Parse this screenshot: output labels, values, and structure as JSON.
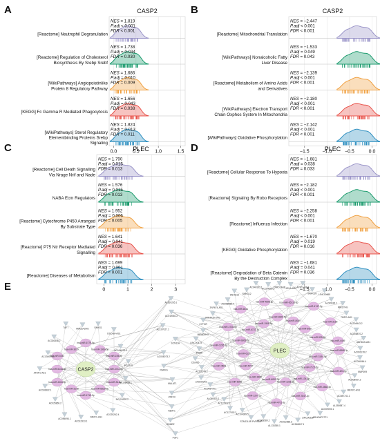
{
  "figure": {
    "labels": [
      "A",
      "B",
      "C",
      "D",
      "E"
    ]
  },
  "chart_data": [
    {
      "panel": "A",
      "type": "ridgeline",
      "title": "CASP2",
      "xticks": [
        "0.0",
        "0.5",
        "1.0",
        "1.5"
      ],
      "xlim": [
        -0.1,
        1.6
      ],
      "colors": [
        "#9a94c8",
        "#1a9a6c",
        "#f0a040",
        "#e8524a",
        "#2e8fc0"
      ],
      "rows": [
        {
          "label": [
            "[Reactome] Neutrophil Degranulation"
          ],
          "nes": "1.819",
          "padj": "< 0.001",
          "fdr": "< 0.001",
          "peak": 0.3
        },
        {
          "label": [
            "[Reactome] Regulation of Cholesterol",
            "Biosynthesis By Srebp Srebf"
          ],
          "nes": "1.738",
          "padj": "0.034",
          "fdr": "0.030",
          "peak": 0.3
        },
        {
          "label": [
            "[WikiPathways] Angiopoietinlike",
            "Protein 8 Regulatory Pathway"
          ],
          "nes": "1.686",
          "padj": "0.010",
          "fdr": "0.009",
          "peak": 0.3
        },
        {
          "label": [
            "[KEGG] Fc Gamma R Mediated Phagocytosis"
          ],
          "nes": "1.656",
          "padj": "0.043",
          "fdr": "0.038",
          "peak": 0.3
        },
        {
          "label": [
            "[WikiPathways] Sterol Regulatory",
            "Elementbinding Proteins Srebp",
            "Signaling"
          ],
          "nes": "1.824",
          "padj": "0.013",
          "fdr": "0.011",
          "peak": 0.3
        }
      ]
    },
    {
      "panel": "B",
      "type": "ridgeline",
      "title": "CASP2",
      "xticks": [
        "-1.5",
        "-1.0",
        "-0.5",
        "0.0"
      ],
      "xlim": [
        -1.85,
        0.1
      ],
      "colors": [
        "#9a94c8",
        "#1a9a6c",
        "#f0a040",
        "#e8524a",
        "#2e8fc0"
      ],
      "rows": [
        {
          "label": [
            "[Reactome] Mitochondrial Translation"
          ],
          "nes": "−2.447",
          "padj": "< 0.001",
          "fdr": "< 0.001",
          "peak": -0.35
        },
        {
          "label": [
            "[WikiPathways] Nonalcoholic Fatty",
            "Liver Disease"
          ],
          "nes": "−1.533",
          "padj": "0.049",
          "fdr": "0.043",
          "peak": -0.35
        },
        {
          "label": [
            "[Reactome] Metabolism of Amino Acids",
            "and Derivatives"
          ],
          "nes": "−2.139",
          "padj": "< 0.001",
          "fdr": "< 0.001",
          "peak": -0.35
        },
        {
          "label": [
            "[WikiPathways] Electron Transport",
            "Chain Oxphos System In Mitochondria"
          ],
          "nes": "−2.180",
          "padj": "< 0.001",
          "fdr": "< 0.001",
          "peak": -0.35
        },
        {
          "label": [
            "[WikiPathways] Oxidative Phosphorylation"
          ],
          "nes": "−2.142",
          "padj": "< 0.001",
          "fdr": "< 0.001",
          "peak": -0.35
        }
      ]
    },
    {
      "panel": "C",
      "type": "ridgeline",
      "title": "PLEC",
      "xticks": [
        "0",
        "1",
        "2",
        "3"
      ],
      "xlim": [
        -0.3,
        3.4
      ],
      "colors": [
        "#9a94c8",
        "#1a9a6c",
        "#f0a040",
        "#e8524a",
        "#2e8fc0"
      ],
      "rows": [
        {
          "label": [
            "[Reactome] Cell Death Signalling",
            "Via Nrage Nrif and Nade"
          ],
          "nes": "1.790",
          "padj": "0.015",
          "fdr": "0.013",
          "peak": 0.6
        },
        {
          "label": [
            "NABA Ecm Regulators"
          ],
          "nes": "1.576",
          "padj": "0.015",
          "fdr": "0.013",
          "peak": 0.6
        },
        {
          "label": [
            "[Reactome] Cytochrome P450 Arranged",
            "By Substrate Type"
          ],
          "nes": "1.952",
          "padj": "0.006",
          "fdr": "0.005",
          "peak": 0.6
        },
        {
          "label": [
            "[Reactome] P75 Ntr Receptor Mediated",
            "Signalling"
          ],
          "nes": "1.641",
          "padj": "0.041",
          "fdr": "0.036",
          "peak": 0.6
        },
        {
          "label": [
            "[Reactome] Diseases of Metabolism"
          ],
          "nes": "1.699",
          "padj": "0.001",
          "fdr": "< 0.001",
          "peak": 0.6
        }
      ]
    },
    {
      "panel": "D",
      "type": "ridgeline",
      "title": "PLEC",
      "xticks": [
        "-1.5",
        "-1.0",
        "-0.5",
        "0.0"
      ],
      "xlim": [
        -1.85,
        0.1
      ],
      "colors": [
        "#9a94c8",
        "#1a9a6c",
        "#f0a040",
        "#e8524a",
        "#2e8fc0"
      ],
      "rows": [
        {
          "label": [
            "[Reactome] Cellular Response To Hypoxia"
          ],
          "nes": "−1.681",
          "padj": "0.038",
          "fdr": "0.033",
          "peak": -0.35
        },
        {
          "label": [
            "[Reactome] Signaling By Robo Receptors"
          ],
          "nes": "−2.182",
          "padj": "< 0.001",
          "fdr": "< 0.001",
          "peak": -0.35
        },
        {
          "label": [
            "[Reactome] Influenza Infection"
          ],
          "nes": "−2.258",
          "padj": "< 0.001",
          "fdr": "< 0.001",
          "peak": -0.35
        },
        {
          "label": [
            "[KEGG] Oxidative Phosphorylation"
          ],
          "nes": "−1.670",
          "padj": "0.019",
          "fdr": "0.016",
          "peak": -0.35
        },
        {
          "label": [
            "[Reactome] Degradation of Beta Catenin",
            "By the Destruction Complex"
          ],
          "nes": "−1.681",
          "padj": "0.041",
          "fdr": "0.036",
          "peak": -0.35
        }
      ]
    }
  ],
  "network": {
    "panel": "E",
    "hubs": [
      {
        "name": "CASP2"
      },
      {
        "name": "PLEC"
      }
    ],
    "colors": {
      "mirna": "#e2b8e2",
      "gene": "#c4d0d8",
      "hub": "#e0efc4",
      "edge": "#9a9a9a"
    },
    "center_genes": [
      "AL160265.1",
      "AC019081.2",
      "AC107027.1",
      "SCN11A",
      "AC008073.2",
      "PARVG",
      "MALAT1",
      "ZNF23",
      "NEAT1",
      "HOMEZ",
      "FGF1"
    ],
    "casp2_mirnas": [
      "hsa-miR-4712-5p",
      "hsa-miR-31-5p",
      "hsa-miR-6829-5p",
      "hsa-miR-4713-5p",
      "hsa-miR-3178",
      "hsa-miR-2116-3p",
      "hsa-miR-513a-3p",
      "hsa-miR-5192",
      "hsa-miR-3679",
      "hsa-miR-6779-5p",
      "hsa-miR-196a-5p",
      "hsa-miR-155-5p"
    ],
    "casp2_genes": [
      "AC108488.1",
      "AC124309.2",
      "AC025262.4",
      "NR2F1-AS1",
      "AC012313.1",
      "AC095094.1",
      "AC025869.2",
      "AC016822.1",
      "AFAP1-AS1",
      "AC130005.3",
      "AC026348.2",
      "TAF7",
      "MIR3142HG",
      "SNHG1",
      "DSCAM-AS1",
      "AC104072.3",
      "PCAT19"
    ],
    "plec_mirnas": [
      "hsa-miR-6868-3p",
      "hsa-miR-3184-3p",
      "hsa-miR-423-5p",
      "hsa-miR-7107-5p",
      "hsa-miR-4668-5p",
      "hsa-miR-134-5p",
      "hsa-miR-7847-3p",
      "hsa-miR-1228-3p",
      "hsa-miR-4701-3p",
      "hsa-miR-6832-3p",
      "hsa-miR-1207-5p",
      "hsa-miR-3960",
      "hsa-miR-6089",
      "hsa-miR-5787",
      "hsa-miR-4508",
      "hsa-miR-6126",
      "hsa-miR-1226-3p",
      "hsa-miR-6869-5p",
      "hsa-miR-4728-5p",
      "hsa-miR-6722-3p",
      "hsa-miR-663a",
      "hsa-miR-1908-5p",
      "hsa-miR-4695-5p",
      "hsa-miR-3620-5p",
      "hsa-miR-6511b-5p",
      "hsa-miR-8069",
      "hsa-miR-4747-3p",
      "hsa-miR-6087",
      "hsa-miR-3196",
      "hsa-miR-939-5p",
      "hsa-miR-4459"
    ],
    "plec_genes": [
      "AC006064.4",
      "MAP3K9",
      "AC008067.2",
      "MEF2C-AS1",
      "AC087741.1",
      "AL355987.4",
      "AC009093.1",
      "ARHGAP27P1",
      "LINC00339",
      "AC246817.1",
      "AC012358.3",
      "AL133355.1",
      "AC068580.2",
      "STAG3L5P-PVRIG2P",
      "AC104389.5",
      "AC127002.2",
      "AC137932.2",
      "AL050403.2",
      "AC005776.1",
      "LINC00342",
      "AC111149.2",
      "C5orf66",
      "PKI55",
      "LINC00473",
      "MIR600HG",
      "CYTOR",
      "MIR4435-2HG",
      "ZNF674-AS1",
      "AC008555.4",
      "SNHG16",
      "SNHG12",
      "AC040162.1",
      "AC024560.3",
      "ZNRD1ASP",
      "HOXA-AS2",
      "AP001468.1",
      "SNHG20",
      "LINC00665",
      "AL009181.1",
      "MIR17HG",
      "TMPO-AS1",
      "AC004943.2",
      "AC008870.2",
      "ABHD15-AS1",
      "AC091178.2"
    ]
  }
}
